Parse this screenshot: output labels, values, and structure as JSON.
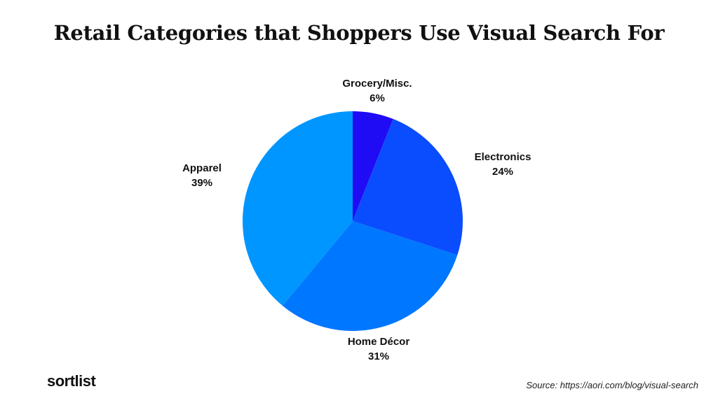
{
  "chart_data": {
    "type": "pie",
    "title": "Retail Categories that Shoppers Use Visual Search For",
    "start": "top",
    "direction": "clockwise",
    "slices": [
      {
        "label": "Grocery/Misc.",
        "value": 6,
        "value_label": "6%",
        "color": "#1f0cf5"
      },
      {
        "label": "Electronics",
        "value": 24,
        "value_label": "24%",
        "color": "#0a4dff"
      },
      {
        "label": "Home Décor",
        "value": 31,
        "value_label": "31%",
        "color": "#0077ff"
      },
      {
        "label": "Apparel",
        "value": 39,
        "value_label": "39%",
        "color": "#0096ff"
      }
    ]
  },
  "footer": {
    "logo": "sortlist",
    "source": "Source: https://aori.com/blog/visual-search"
  }
}
